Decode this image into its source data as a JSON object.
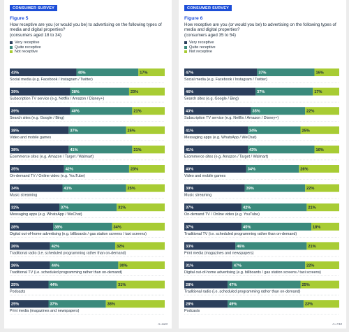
{
  "chart_data": [
    {
      "type": "bar",
      "orientation": "horizontal",
      "stacked": true,
      "badge": "CONSUMER SURVEY",
      "figure_label": "Figure 5",
      "title": "How receptive are you (or would you be) to advertising on the following types of media and digital properties?",
      "subtitle": "(consumers aged 18 to 34)",
      "legend_position": "top-left",
      "grid": false,
      "xlim": [
        0,
        100
      ],
      "footnote": "n=620",
      "categories": [
        "Social media (e.g. Facebook / Instagram / Twitter)",
        "Subscription TV service (e.g. Netflix / Amazon / Disney+)",
        "Search sites (e.g. Google / Bing)",
        "Video and mobile games",
        "Ecommerce sites (e.g. Amazon / Target / Walmart)",
        "On-demand TV / Online video (e.g. YouTube)",
        "Music streaming",
        "Messaging apps (e.g. WhatsApp / WeChat)",
        "Digital out-of-home advertising (e.g. billboards / gas station screens / taxi screens)",
        "Traditional radio (i.e. scheduled programming rather than on-demand)",
        "Traditional TV (i.e. scheduled programming rather than on-demand)",
        "Podcasts",
        "Print media (magazines and newspapers)"
      ],
      "series": [
        {
          "name": "Very receptive",
          "color": "#2b3f5c",
          "values": [
            43,
            39,
            39,
            38,
            38,
            35,
            34,
            32,
            28,
            26,
            26,
            25,
            25
          ]
        },
        {
          "name": "Quite receptive",
          "color": "#3b8a7c",
          "values": [
            40,
            38,
            40,
            37,
            41,
            42,
            41,
            37,
            38,
            42,
            44,
            44,
            37
          ]
        },
        {
          "name": "Not receptive",
          "color": "#a8cc34",
          "values": [
            17,
            23,
            21,
            25,
            21,
            23,
            25,
            31,
            34,
            32,
            30,
            31,
            38
          ]
        }
      ]
    },
    {
      "type": "bar",
      "orientation": "horizontal",
      "stacked": true,
      "badge": "CONSUMER SURVEY",
      "figure_label": "Figure 6",
      "title": "How receptive are you (or would you be) to advertising on the following types of media and digital properties?",
      "subtitle": "(consumers aged 35 to 54)",
      "legend_position": "top-left",
      "grid": false,
      "xlim": [
        0,
        100
      ],
      "footnote": "n=740",
      "categories": [
        "Social media (e.g. Facebook / Instagram / Twitter)",
        "Search sites (e.g. Google / Bing)",
        "Subscription TV service (e.g. Netflix / Amazon / Disney+)",
        "Messaging apps (e.g. WhatsApp / WeChat)",
        "Ecommerce sites (e.g. Amazon / Target / Walmart)",
        "Video and mobile games",
        "Music streaming",
        "On-demand TV / Online video (e.g. YouTube)",
        "Traditional TV (i.e. scheduled programming rather than on-demand)",
        "Print media (magazines and newspapers)",
        "Digital out-of-home advertising (e.g. billboards / gas station screens / taxi screens)",
        "Traditional radio (i.e. scheduled programming rather than on-demand)",
        "Podcasts"
      ],
      "series": [
        {
          "name": "Very receptive",
          "color": "#2b3f5c",
          "values": [
            47,
            46,
            43,
            41,
            41,
            40,
            39,
            37,
            37,
            33,
            31,
            28,
            28
          ]
        },
        {
          "name": "Quite receptive",
          "color": "#3b8a7c",
          "values": [
            37,
            37,
            35,
            34,
            43,
            34,
            39,
            42,
            45,
            46,
            47,
            47,
            49
          ]
        },
        {
          "name": "Not receptive",
          "color": "#a8cc34",
          "values": [
            16,
            17,
            22,
            25,
            16,
            26,
            22,
            21,
            18,
            21,
            22,
            25,
            23
          ]
        }
      ]
    }
  ]
}
